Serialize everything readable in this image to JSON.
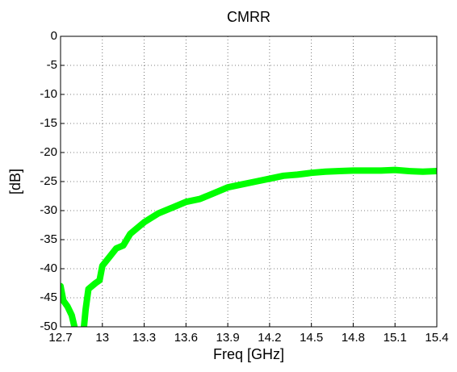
{
  "chart_data": {
    "type": "line",
    "title": "CMRR",
    "xlabel": "Freq [GHz]",
    "ylabel": "[dB]",
    "x": [
      12.7,
      12.72,
      12.75,
      12.78,
      12.8,
      12.82,
      12.86,
      12.88,
      12.9,
      12.95,
      12.98,
      13.0,
      13.05,
      13.1,
      13.15,
      13.2,
      13.3,
      13.4,
      13.5,
      13.6,
      13.7,
      13.8,
      13.9,
      14.0,
      14.1,
      14.2,
      14.3,
      14.4,
      14.5,
      14.6,
      14.7,
      14.8,
      14.9,
      15.0,
      15.1,
      15.2,
      15.3,
      15.4
    ],
    "series": [
      {
        "name": "CMRR",
        "color": "#00ff00",
        "values": [
          -43,
          -45.5,
          -46.5,
          -48,
          -50,
          -52,
          -52,
          -47,
          -43.5,
          -42.5,
          -42,
          -39.5,
          -38,
          -36.5,
          -36,
          -34,
          -32,
          -30.5,
          -29.5,
          -28.5,
          -28,
          -27,
          -26,
          -25.5,
          -25,
          -24.5,
          -24,
          -23.8,
          -23.5,
          -23.3,
          -23.2,
          -23.1,
          -23.1,
          -23.1,
          -23.0,
          -23.2,
          -23.3,
          -23.2
        ]
      }
    ],
    "xlim": [
      12.7,
      15.4
    ],
    "xticks": [
      12.7,
      13,
      13.3,
      13.6,
      13.9,
      14.2,
      14.5,
      14.8,
      15.1,
      15.4
    ],
    "ylim": [
      -50,
      0
    ],
    "yticks": [
      0,
      -5,
      -10,
      -15,
      -20,
      -25,
      -30,
      -35,
      -40,
      -45,
      -50
    ],
    "grid": true
  }
}
